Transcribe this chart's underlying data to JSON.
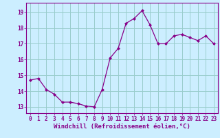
{
  "x": [
    0,
    1,
    2,
    3,
    4,
    5,
    6,
    7,
    8,
    9,
    10,
    11,
    12,
    13,
    14,
    15,
    16,
    17,
    18,
    19,
    20,
    21,
    22,
    23
  ],
  "y": [
    14.7,
    14.8,
    14.1,
    13.8,
    13.3,
    13.3,
    13.2,
    13.05,
    13.0,
    14.1,
    16.1,
    16.7,
    18.3,
    18.6,
    19.1,
    18.2,
    17.0,
    17.0,
    17.5,
    17.6,
    17.4,
    17.2,
    17.5,
    17.0
  ],
  "line_color": "#880088",
  "marker": "D",
  "markersize": 2.0,
  "linewidth": 0.9,
  "xlabel": "Windchill (Refroidissement éolien,°C)",
  "xlabel_fontsize": 6.5,
  "ylabel_ticks": [
    13,
    14,
    15,
    16,
    17,
    18,
    19
  ],
  "ylim": [
    12.6,
    19.6
  ],
  "xlim": [
    -0.5,
    23.5
  ],
  "bg_color": "#cceeff",
  "grid_color": "#99cccc",
  "tick_color": "#880088",
  "label_color": "#880088",
  "tick_fontsize": 5.5
}
